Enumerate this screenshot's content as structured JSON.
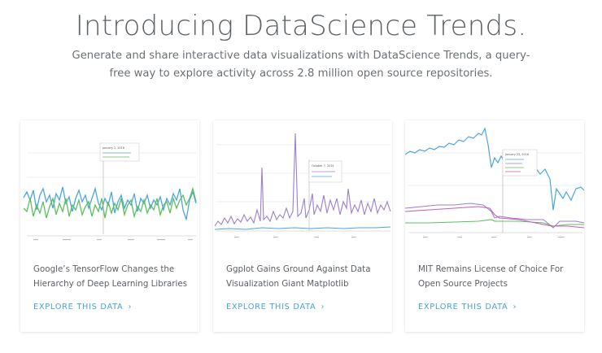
{
  "hero": {
    "title": "Introducing DataScience Trends.",
    "subtitle": "Generate and share interactive data visualizations with DataScience Trends, a query-free way to explore activity across 2.8 million open source repositories."
  },
  "cards": [
    {
      "title": "Google’s TensorFlow Changes the Hierarchy of Deep Learning Libraries",
      "cta": "EXPLORE THIS DATA",
      "tooltip_date": "January 2, 2016",
      "colors": [
        "#4aa6e0",
        "#5cbf5c"
      ]
    },
    {
      "title": "Ggplot Gains Ground Against Data Visualization Giant Matplotlib",
      "cta": "EXPLORE THIS DATA",
      "tooltip_date": "October 7, 2014",
      "colors": [
        "#9b7fd0",
        "#4aa6e0"
      ]
    },
    {
      "title": "MIT Remains License of Choice For Open Source Projects",
      "cta": "EXPLORE THIS DATA",
      "tooltip_date": "January 23, 2016",
      "colors": [
        "#4aa6e0",
        "#9b7fd0",
        "#5cbf5c",
        "#c85fb8"
      ]
    }
  ]
}
